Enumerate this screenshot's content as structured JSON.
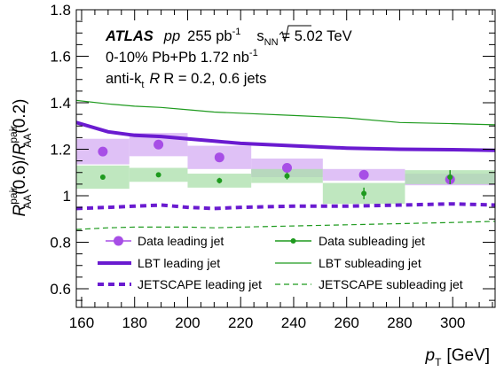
{
  "chart_data": {
    "type": "line",
    "x_label": "p",
    "x_label_sub": "T",
    "x_unit": "[GeV]",
    "y_label": {
      "r1": "R",
      "r1_sup": "pair",
      "r1_sub": "AA",
      "part1": "(0.6)/",
      "r2": "R",
      "r2_sup": "pair",
      "r2_sub": "AA",
      "part2": "(0.2)"
    },
    "xlim": [
      158,
      316
    ],
    "ylim": [
      0.52,
      1.8
    ],
    "x_ticks": [
      "160",
      "180",
      "200",
      "220",
      "240",
      "260",
      "280",
      "300"
    ],
    "y_ticks": [
      "0.6",
      "0.8",
      "1",
      "1.2",
      "1.4",
      "1.6",
      "1.8"
    ],
    "annotations": {
      "atlas": "ATLAS",
      "pp": "pp",
      "lumi_pp": "255 pb",
      "lumi_pp_sup": "-1",
      "sqrt_s": "s",
      "sqrt_s_sub": "NN",
      "energy": "= 5.02 TeV",
      "centrality": "0-10%  Pb+Pb  1.72 nb",
      "centrality_sup": "-1",
      "algo": "anti-k",
      "algo_sub": "t",
      "radius": "R = 0.2, 0.6 jets"
    },
    "legend": {
      "data_leading": "Data leading jet",
      "data_subleading": "Data subleading jet",
      "lbt_leading": "LBT leading jet",
      "lbt_subleading": "LBT subleading jet",
      "jetscape_leading": "JETSCAPE leading jet",
      "jetscape_subleading": "JETSCAPE subleading jet"
    },
    "colors": {
      "leading_marker": "#a74ee6",
      "leading_band": "#d9b6f5",
      "subleading_marker": "#1e9a1e",
      "subleading_band": "#a9dfa9",
      "lbt_leading": "#6a1bd0",
      "lbt_subleading": "#1e9a1e",
      "jetscape_leading": "#6a1bd0",
      "jetscape_subleading": "#1e9a1e"
    },
    "bins": [
      {
        "x0": 158,
        "x1": 178
      },
      {
        "x0": 178,
        "x1": 200
      },
      {
        "x0": 200,
        "x1": 224
      },
      {
        "x0": 224,
        "x1": 251
      },
      {
        "x0": 251,
        "x1": 282
      },
      {
        "x0": 282,
        "x1": 316
      }
    ],
    "data_leading": {
      "x": [
        168,
        189,
        212,
        237.5,
        266.5,
        299
      ],
      "y": [
        1.19,
        1.22,
        1.165,
        1.12,
        1.09,
        1.07
      ],
      "stat": [
        0.01,
        0.01,
        0.01,
        0.01,
        0.01,
        0.015
      ],
      "syst": [
        0.055,
        0.05,
        0.05,
        0.04,
        0.025,
        0.025
      ]
    },
    "data_subleading": {
      "x": [
        168,
        189,
        212,
        237.5,
        266.5,
        299
      ],
      "y": [
        1.08,
        1.09,
        1.065,
        1.085,
        1.01,
        1.08
      ],
      "stat": [
        0.01,
        0.01,
        0.012,
        0.015,
        0.025,
        0.03
      ],
      "syst": [
        0.05,
        0.03,
        0.03,
        0.03,
        0.045,
        0.03
      ]
    },
    "lbt_leading": {
      "x": [
        158,
        170,
        180,
        190,
        200,
        210,
        220,
        240,
        260,
        280,
        300,
        316
      ],
      "y": [
        1.315,
        1.275,
        1.26,
        1.255,
        1.245,
        1.235,
        1.225,
        1.215,
        1.205,
        1.2,
        1.198,
        1.195
      ]
    },
    "lbt_subleading": {
      "x": [
        158,
        170,
        180,
        190,
        200,
        210,
        220,
        240,
        260,
        280,
        300,
        316
      ],
      "y": [
        1.41,
        1.395,
        1.385,
        1.38,
        1.37,
        1.36,
        1.355,
        1.345,
        1.335,
        1.315,
        1.31,
        1.305
      ]
    },
    "jetscape_leading": {
      "x": [
        158,
        170,
        180,
        190,
        200,
        210,
        220,
        240,
        260,
        280,
        300,
        316
      ],
      "y": [
        0.945,
        0.95,
        0.955,
        0.96,
        0.95,
        0.945,
        0.95,
        0.955,
        0.955,
        0.96,
        0.965,
        0.96
      ]
    },
    "jetscape_subleading": {
      "x": [
        158,
        170,
        180,
        190,
        200,
        210,
        220,
        240,
        260,
        280,
        300,
        316
      ],
      "y": [
        0.855,
        0.862,
        0.865,
        0.865,
        0.865,
        0.862,
        0.865,
        0.87,
        0.875,
        0.88,
        0.885,
        0.89
      ]
    }
  }
}
